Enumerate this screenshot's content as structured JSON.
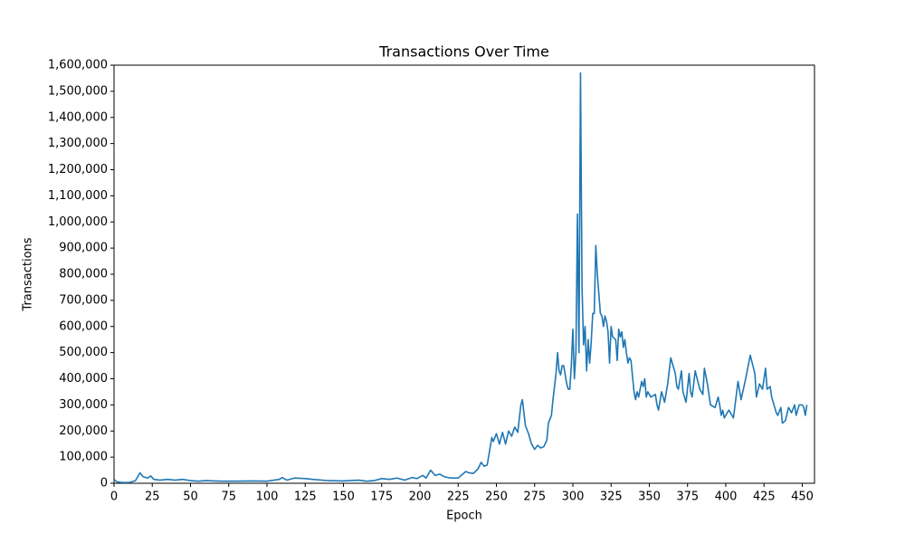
{
  "chart_data": {
    "type": "line",
    "title": "Transactions Over Time",
    "x_label": "Epoch",
    "y_label": "Transactions",
    "color": "#1f77b4",
    "x": [
      0,
      2,
      5,
      10,
      14,
      17,
      19,
      22,
      24,
      26,
      30,
      35,
      40,
      45,
      50,
      55,
      60,
      70,
      80,
      90,
      100,
      108,
      110,
      113,
      118,
      125,
      130,
      140,
      150,
      160,
      165,
      170,
      175,
      180,
      185,
      190,
      195,
      198,
      202,
      204,
      207,
      210,
      213,
      216,
      220,
      225,
      228,
      230,
      232,
      235,
      238,
      240,
      242,
      244,
      246,
      247,
      248,
      250,
      252,
      254,
      256,
      258,
      260,
      262,
      264,
      266,
      267,
      269,
      271,
      273,
      275,
      277,
      279,
      281,
      283,
      284,
      286,
      287,
      289,
      290,
      291,
      292,
      293,
      294,
      296,
      297,
      298,
      299,
      300,
      301,
      302,
      303,
      304,
      305,
      306,
      307,
      308,
      309,
      310,
      311,
      312,
      313,
      314,
      315,
      316,
      318,
      319,
      320,
      321,
      322,
      323,
      324,
      325,
      326,
      328,
      329,
      330,
      331,
      332,
      333,
      334,
      335,
      336,
      337,
      338,
      340,
      341,
      342,
      343,
      345,
      346,
      347,
      348,
      349,
      351,
      354,
      355,
      356,
      358,
      360,
      362,
      364,
      367,
      368,
      369,
      371,
      372,
      374,
      376,
      377,
      378,
      380,
      383,
      385,
      386,
      388,
      390,
      393,
      395,
      396,
      397,
      398,
      399,
      402,
      405,
      408,
      410,
      413,
      416,
      419,
      420,
      422,
      424,
      426,
      427,
      429,
      430,
      433,
      434,
      436,
      437,
      439,
      441,
      443,
      445,
      446,
      448,
      450,
      451,
      452,
      453
    ],
    "values": [
      15000,
      5000,
      3000,
      3000,
      10000,
      40000,
      25000,
      20000,
      28000,
      15000,
      12000,
      15000,
      12000,
      15000,
      10000,
      8000,
      10000,
      8000,
      8000,
      9000,
      8000,
      15000,
      22000,
      12000,
      20000,
      18000,
      15000,
      10000,
      9000,
      12000,
      8000,
      10000,
      18000,
      15000,
      20000,
      12000,
      22000,
      18000,
      30000,
      20000,
      50000,
      30000,
      35000,
      25000,
      20000,
      20000,
      35000,
      45000,
      40000,
      38000,
      55000,
      80000,
      65000,
      70000,
      140000,
      175000,
      160000,
      190000,
      150000,
      195000,
      150000,
      200000,
      180000,
      215000,
      195000,
      300000,
      320000,
      220000,
      190000,
      150000,
      130000,
      145000,
      135000,
      140000,
      165000,
      230000,
      260000,
      320000,
      420000,
      500000,
      430000,
      415000,
      450000,
      450000,
      380000,
      360000,
      360000,
      450000,
      590000,
      400000,
      500000,
      1030000,
      500000,
      1570000,
      750000,
      530000,
      600000,
      430000,
      550000,
      460000,
      540000,
      650000,
      650000,
      910000,
      800000,
      650000,
      640000,
      600000,
      640000,
      620000,
      580000,
      460000,
      600000,
      560000,
      550000,
      470000,
      590000,
      560000,
      580000,
      520000,
      550000,
      500000,
      460000,
      480000,
      470000,
      350000,
      320000,
      350000,
      330000,
      390000,
      370000,
      400000,
      330000,
      350000,
      330000,
      340000,
      300000,
      280000,
      350000,
      310000,
      380000,
      480000,
      420000,
      370000,
      360000,
      430000,
      350000,
      310000,
      420000,
      350000,
      330000,
      430000,
      360000,
      340000,
      440000,
      380000,
      300000,
      290000,
      330000,
      300000,
      260000,
      280000,
      250000,
      280000,
      250000,
      390000,
      320000,
      400000,
      490000,
      420000,
      330000,
      380000,
      360000,
      440000,
      360000,
      370000,
      330000,
      270000,
      260000,
      290000,
      230000,
      240000,
      290000,
      270000,
      300000,
      260000,
      300000,
      300000,
      290000,
      260000,
      300000
    ],
    "xlim": [
      0,
      458
    ],
    "ylim": [
      0,
      1600000
    ],
    "xticks": [
      0,
      25,
      50,
      75,
      100,
      125,
      150,
      175,
      200,
      225,
      250,
      275,
      300,
      325,
      350,
      375,
      400,
      425,
      450
    ],
    "yticks": [
      0,
      {
        "value": 100000,
        "label": "100,000"
      },
      {
        "value": 200000,
        "label": "200,000"
      },
      {
        "value": 300000,
        "label": "300,000"
      },
      {
        "value": 400000,
        "label": "400,000"
      },
      {
        "value": 500000,
        "label": "500,000"
      },
      {
        "value": 600000,
        "label": "600,000"
      },
      {
        "value": 700000,
        "label": "700,000"
      },
      {
        "value": 800000,
        "label": "800,000"
      },
      {
        "value": 900000,
        "label": "900,000"
      },
      {
        "value": 1000000,
        "label": "1,000,000"
      },
      {
        "value": 1100000,
        "label": "1,100,000"
      },
      {
        "value": 1200000,
        "label": "1,200,000"
      },
      {
        "value": 1300000,
        "label": "1,300,000"
      },
      {
        "value": 1400000,
        "label": "1,400,000"
      },
      {
        "value": 1500000,
        "label": "1,500,000"
      },
      {
        "value": 1600000,
        "label": "1,600,000"
      }
    ]
  }
}
